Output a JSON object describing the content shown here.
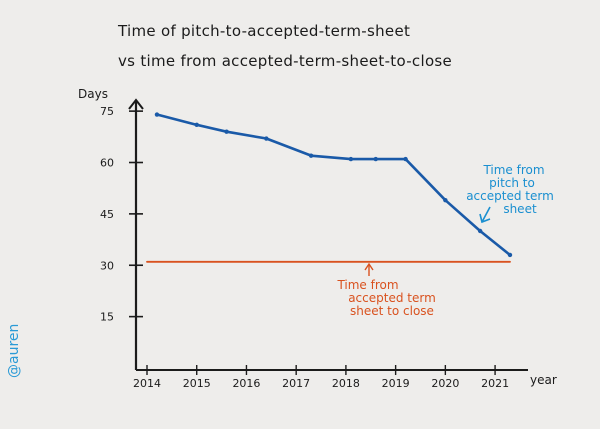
{
  "chart_data": {
    "type": "line",
    "title_line1": "Time of pitch-to-accepted-term-sheet",
    "title_line2": "vs time from accepted-term-sheet-to-close",
    "ylabel": "Days",
    "xlabel": "year",
    "y_ticks": [
      15,
      30,
      45,
      60,
      75
    ],
    "y_tick_labels": [
      "15",
      "30",
      "45",
      "60",
      "75"
    ],
    "ylim": [
      0,
      80
    ],
    "x_ticks": [
      2014,
      2015,
      2016,
      2017,
      2018,
      2019,
      2020,
      2021
    ],
    "x_tick_labels": [
      "2014",
      "2015",
      "2016",
      "2017",
      "2018",
      "2019",
      "2020",
      "2021"
    ],
    "xlim": [
      2014,
      2021.3
    ],
    "grid": false,
    "series": [
      {
        "name": "Time from pitch to accepted term sheet",
        "color": "#1a5aa8",
        "x": [
          2014.2,
          2015.0,
          2015.6,
          2016.4,
          2017.3,
          2018.1,
          2018.6,
          2019.2,
          2020.0,
          2020.7,
          2021.3
        ],
        "y": [
          74,
          71,
          69,
          67,
          62,
          61,
          61,
          61,
          49,
          40,
          33
        ]
      },
      {
        "name": "Time from accepted term sheet to close",
        "color": "#d9521f",
        "x": [
          2014.0,
          2021.3
        ],
        "y": [
          31,
          31
        ]
      }
    ],
    "annotations": [
      {
        "lines": [
          "Time from",
          "pitch to",
          "accepted term",
          "sheet"
        ],
        "color": "#1a8fd0"
      },
      {
        "lines": [
          "Time from",
          "accepted term",
          "sheet to close"
        ],
        "color": "#d9521f"
      }
    ],
    "signature": "@auren",
    "signature_color": "#2a9ad6"
  }
}
